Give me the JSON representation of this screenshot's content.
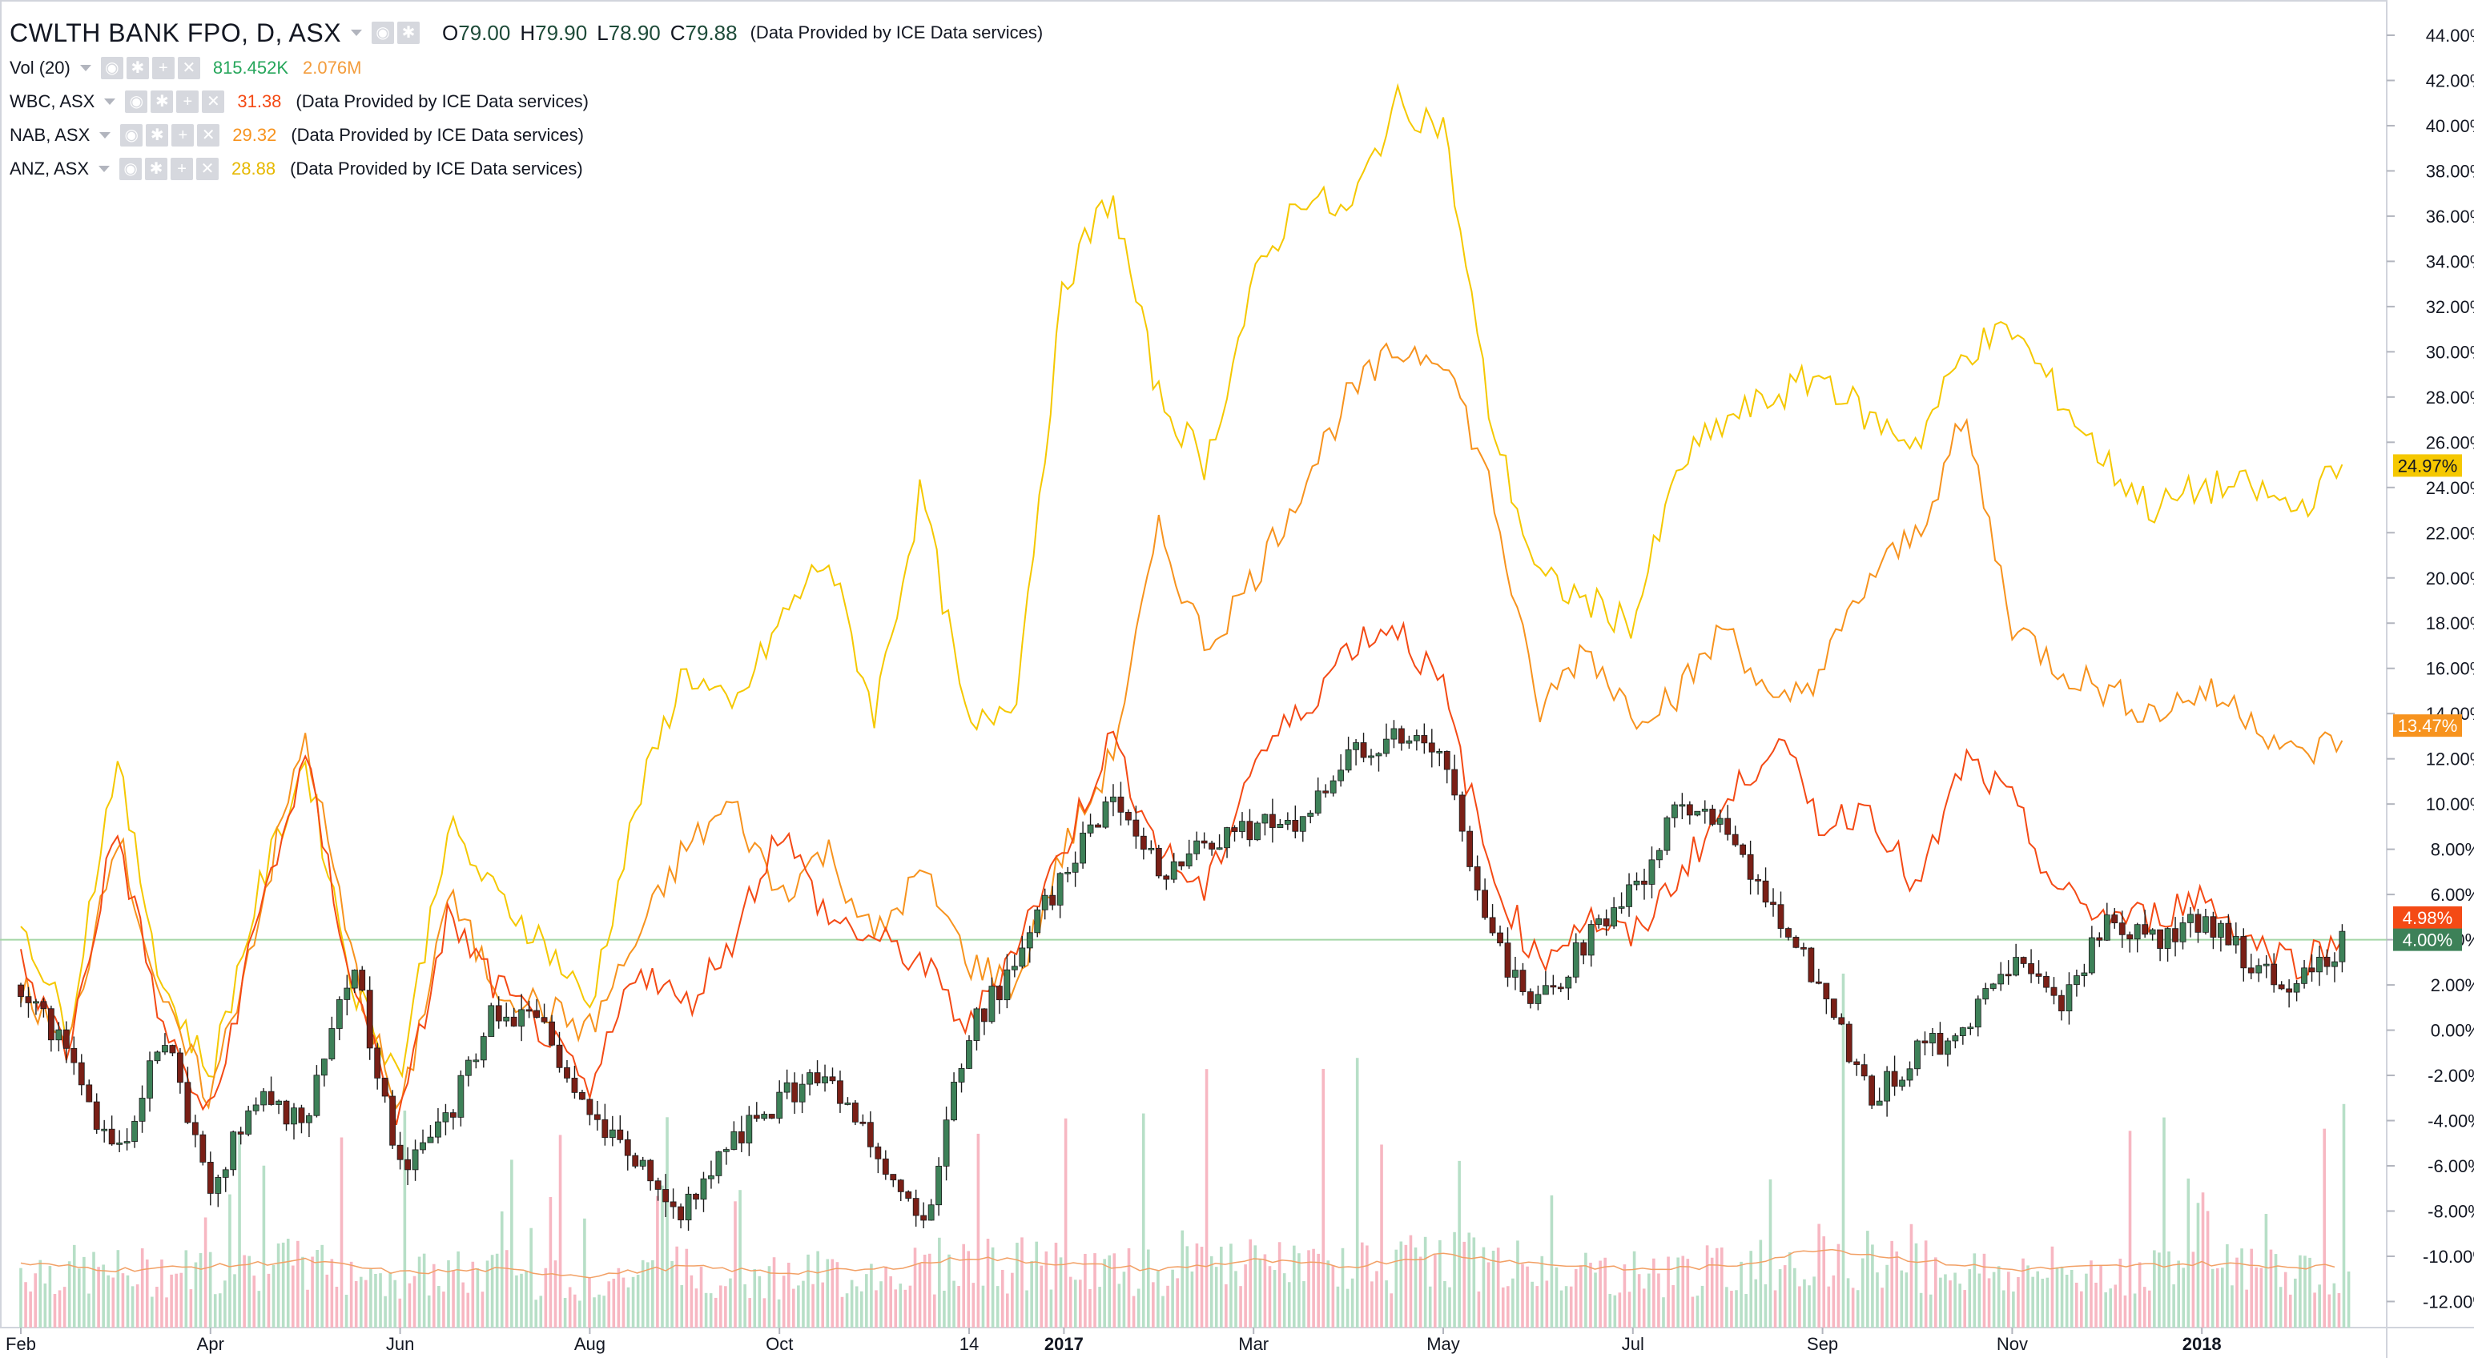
{
  "colors": {
    "anz": "#f5c800",
    "nab": "#f7931e",
    "wbc": "#f44a15",
    "up_candle": "#3d8158",
    "down_candle": "#7a1f16",
    "vol_up": "#b7dfc7",
    "vol_down": "#f7b7c2",
    "vol_ma": "#f2a065",
    "axis_text": "#131722",
    "baseline": "#a5d6a7",
    "vol_value": "#26a65b",
    "vol_ma_value": "#f39c3c"
  },
  "legend": {
    "main": {
      "symbol": "CWLTH BANK FPO, D, ASX",
      "o_label": "O",
      "o": "79.00",
      "h_label": "H",
      "h": "79.90",
      "l_label": "L",
      "l": "78.90",
      "c_label": "C",
      "c": "79.88",
      "note": "(Data Provided by ICE Data services)"
    },
    "vol": {
      "label": "Vol (20)",
      "value": "815.452K",
      "ma_value": "2.076M"
    },
    "wbc": {
      "label": "WBC, ASX",
      "value": "31.38",
      "note": "(Data Provided by ICE Data services)"
    },
    "nab": {
      "label": "NAB, ASX",
      "value": "29.32",
      "note": "(Data Provided by ICE Data services)"
    },
    "anz": {
      "label": "ANZ, ASX",
      "value": "28.88",
      "note": "(Data Provided by ICE Data services)"
    }
  },
  "chart_data": {
    "type": "line",
    "title": "CWLTH BANK FPO, D, ASX",
    "y_unit": "%",
    "ylim": [
      -12,
      44
    ],
    "y_ticks": [
      "44.00%",
      "42.00%",
      "40.00%",
      "38.00%",
      "36.00%",
      "34.00%",
      "32.00%",
      "30.00%",
      "28.00%",
      "26.00%",
      "24.00%",
      "22.00%",
      "20.00%",
      "18.00%",
      "16.00%",
      "14.00%",
      "12.00%",
      "10.00%",
      "8.00%",
      "6.00%",
      "4.00%",
      "2.00%",
      "0.00%",
      "-2.00%",
      "-4.00%",
      "-6.00%",
      "-8.00%",
      "-10.00%",
      "-12.00%"
    ],
    "x_ticks": [
      "Feb",
      "Apr",
      "Jun",
      "Aug",
      "Oct",
      "14",
      "2017",
      "Mar",
      "May",
      "Jul",
      "Sep",
      "Nov",
      "2018"
    ],
    "x_tick_month_index": [
      0,
      2,
      4,
      6,
      8,
      10,
      11,
      13,
      15,
      17,
      19,
      21,
      23
    ],
    "x_range_months": [
      0,
      24.8
    ],
    "price_labels": [
      {
        "series": "ANZ, ASX",
        "value": 24.97,
        "text": "24.97%",
        "color": "#f5c800"
      },
      {
        "series": "NAB, ASX",
        "value": 13.47,
        "text": "13.47%",
        "color": "#f7931e"
      },
      {
        "series": "WBC, ASX",
        "value": 4.98,
        "text": "4.98%",
        "color": "#f44a15"
      },
      {
        "series": "CWLTH BANK FPO, D, ASX",
        "value": 4.0,
        "text": "4.00%",
        "color": "#3d8158"
      }
    ],
    "series": [
      {
        "name": "ANZ, ASX",
        "color": "#f5c800",
        "x": [
          0,
          0.5,
          1,
          1.5,
          2,
          2.5,
          3,
          3.5,
          4,
          4.5,
          5,
          5.5,
          6,
          6.5,
          7,
          7.5,
          8,
          8.5,
          9,
          9.5,
          10,
          10.5,
          11,
          11.5,
          12,
          12.5,
          13,
          13.5,
          14,
          14.5,
          15,
          15.5,
          16,
          16.5,
          17,
          17.5,
          18,
          18.5,
          19,
          19.5,
          20,
          20.5,
          21,
          21.5,
          22,
          22.5,
          23,
          23.5,
          24,
          24.5
        ],
        "values": [
          5,
          0,
          12,
          2,
          -2,
          6,
          12,
          2,
          -2,
          9,
          6,
          4,
          1,
          10,
          16,
          14,
          18,
          21,
          14,
          24,
          13,
          15,
          33,
          37,
          28,
          25,
          33,
          37,
          36,
          41,
          40,
          27,
          20,
          19,
          18,
          25,
          27,
          28,
          29,
          27,
          26,
          30,
          31,
          28,
          25,
          23,
          24,
          24,
          23,
          25
        ]
      },
      {
        "name": "NAB, ASX",
        "color": "#f7931e",
        "x": [
          0,
          0.5,
          1,
          1.5,
          2,
          2.5,
          3,
          3.5,
          4,
          4.5,
          5,
          5.5,
          6,
          6.5,
          7,
          7.5,
          8,
          8.5,
          9,
          9.5,
          10,
          10.5,
          11,
          11.5,
          12,
          12.5,
          13,
          13.5,
          14,
          14.5,
          15,
          15.5,
          16,
          16.5,
          17,
          17.5,
          18,
          18.5,
          19,
          19.5,
          20,
          20.5,
          21,
          21.5,
          22,
          22.5,
          23,
          23.5,
          24,
          24.5
        ],
        "values": [
          2,
          -1,
          9,
          1,
          -3,
          5,
          13,
          3,
          -4,
          6,
          2,
          1,
          0,
          4,
          8,
          10,
          6,
          8,
          4,
          7,
          3,
          2,
          8,
          12,
          22,
          17,
          20,
          24,
          28,
          30,
          30,
          24,
          14,
          17,
          14,
          15,
          18,
          14,
          16,
          20,
          22,
          27,
          18,
          16,
          15,
          14,
          15,
          14,
          12,
          13
        ]
      },
      {
        "name": "WBC, ASX",
        "color": "#f44a15",
        "x": [
          0,
          0.5,
          1,
          1.5,
          2,
          2.5,
          3,
          3.5,
          4,
          4.5,
          5,
          5.5,
          6,
          6.5,
          7,
          7.5,
          8,
          8.5,
          9,
          9.5,
          10,
          10.5,
          11,
          11.5,
          12,
          12.5,
          13,
          13.5,
          14,
          14.5,
          15,
          15.5,
          16,
          16.5,
          17,
          17.5,
          18,
          18.5,
          19,
          19.5,
          20,
          20.5,
          21,
          21.5,
          22,
          22.5,
          23,
          23.5,
          24,
          24.5
        ],
        "values": [
          3,
          -1,
          9,
          0,
          -4,
          5,
          12,
          2,
          -4,
          5,
          2,
          0,
          -3,
          3,
          1,
          4,
          9,
          5,
          4,
          3,
          0,
          4,
          8,
          13,
          8,
          6,
          12,
          14,
          17,
          18,
          15,
          7,
          3,
          5,
          4,
          7,
          10,
          13,
          9,
          10,
          6,
          12,
          10,
          6,
          5,
          5,
          6,
          4,
          3,
          4
        ]
      },
      {
        "name": "CWLTH BANK FPO, D, ASX",
        "color": "#3d8158",
        "x": [
          0,
          0.5,
          1,
          1.5,
          2,
          2.5,
          3,
          3.5,
          4,
          4.5,
          5,
          5.5,
          6,
          6.5,
          7,
          7.5,
          8,
          8.5,
          9,
          9.5,
          10,
          10.5,
          11,
          11.5,
          12,
          12.5,
          13,
          13.5,
          14,
          14.5,
          15,
          15.5,
          16,
          16.5,
          17,
          17.5,
          18,
          18.5,
          19,
          19.5,
          20,
          20.5,
          21,
          21.5,
          22,
          22.5,
          23,
          23.5,
          24,
          24.5
        ],
        "values": [
          2,
          -1,
          -6,
          0,
          -7,
          -3,
          -4,
          3,
          -6,
          -4,
          1,
          0,
          -4,
          -6,
          -8,
          -5,
          -3,
          -2,
          -5,
          -9,
          0,
          3,
          7,
          10,
          7,
          8,
          9,
          9,
          12,
          13,
          12,
          4,
          1,
          4,
          6,
          10,
          9,
          5,
          2,
          -3,
          -1,
          0,
          3,
          1,
          5,
          4,
          5,
          3,
          2,
          4
        ]
      },
      {
        "name": "Vol (20)",
        "color": "#b7dfc7",
        "x": [
          0,
          1,
          2,
          3,
          4,
          5,
          6,
          7,
          8,
          9,
          10,
          11,
          12,
          13,
          14,
          15,
          16,
          17,
          18,
          19,
          20,
          21,
          22,
          23,
          24
        ],
        "values": [
          2.1,
          1.9,
          2.0,
          2.2,
          1.8,
          1.9,
          1.7,
          2.0,
          1.8,
          1.9,
          2.3,
          2.1,
          1.9,
          2.2,
          2.0,
          2.4,
          2.1,
          1.9,
          2.0,
          2.6,
          2.2,
          1.9,
          2.0,
          2.1,
          2.0
        ]
      }
    ]
  }
}
